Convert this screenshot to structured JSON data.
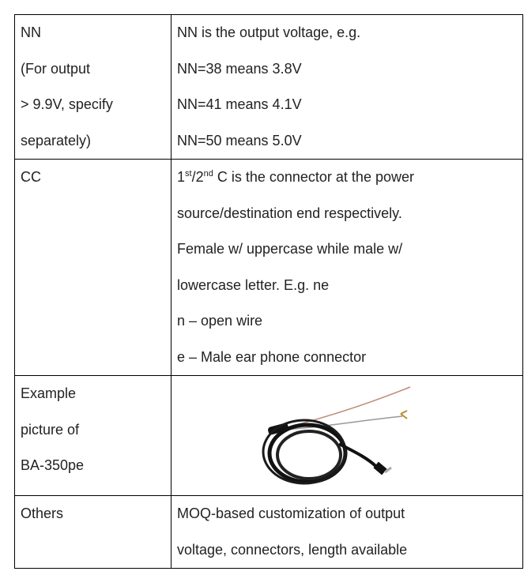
{
  "table": {
    "rows": [
      {
        "label": [
          "NN",
          "(For output",
          "> 9.9V, specify",
          "separately)"
        ],
        "description": [
          "NN is the output voltage, e.g.",
          "NN=38 means 3.8V",
          "NN=41 means 4.1V",
          "NN=50 means 5.0V"
        ]
      },
      {
        "label": [
          "CC"
        ],
        "description": [
          [
            {
              "text": "1"
            },
            {
              "sup": "st"
            },
            {
              "text": "/2"
            },
            {
              "sup": "nd"
            },
            {
              "text": " C is the connector at the power"
            }
          ],
          "source/destination end respectively.",
          "Female w/ uppercase while male w/",
          "lowercase letter. E.g. ne",
          "n – open wire",
          "e – Male ear phone connector"
        ]
      },
      {
        "label": [
          "Example",
          "picture of",
          "BA-350pe"
        ]
      },
      {
        "label": [
          "Others"
        ],
        "description": [
          "MOQ-based customization of output",
          "voltage, connectors, length available"
        ]
      }
    ]
  }
}
